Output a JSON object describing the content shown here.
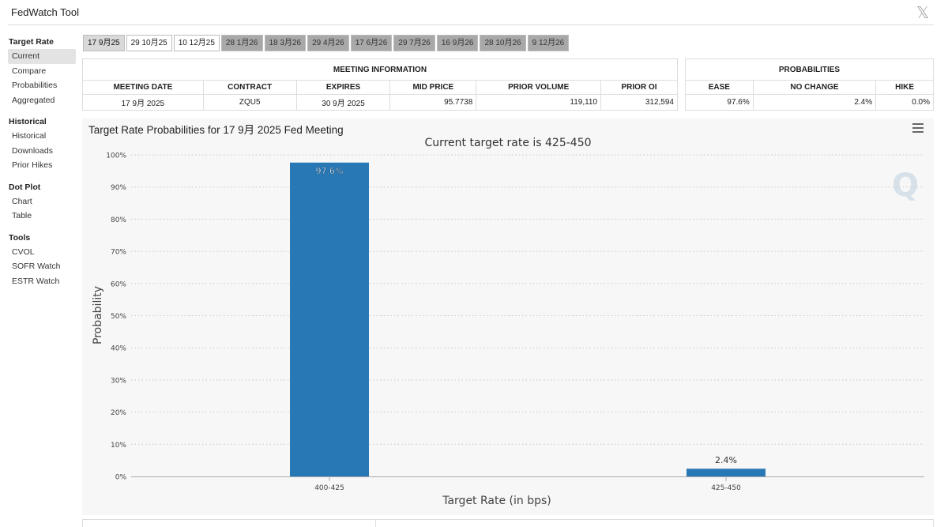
{
  "app": {
    "title": "FedWatch Tool",
    "close_icon": "x-logo-icon"
  },
  "sidebar": {
    "groups": [
      {
        "title": "Target Rate",
        "items": [
          "Current",
          "Compare",
          "Probabilities",
          "Aggregated"
        ]
      },
      {
        "title": "Historical",
        "items": [
          "Historical",
          "Downloads",
          "Prior Hikes"
        ]
      },
      {
        "title": "Dot Plot",
        "items": [
          "Chart",
          "Table"
        ]
      },
      {
        "title": "Tools",
        "items": [
          "CVOL",
          "SOFR Watch",
          "ESTR Watch"
        ]
      }
    ],
    "active_item": "Current"
  },
  "meeting_tabs": [
    "17 9月25",
    "29 10月25",
    "10 12月25",
    "28 1月26",
    "18 3月26",
    "29 4月26",
    "17 6月26",
    "29 7月26",
    "16 9月26",
    "28 10月26",
    "9 12月26"
  ],
  "meeting_info": {
    "header": "MEETING INFORMATION",
    "columns": [
      "MEETING DATE",
      "CONTRACT",
      "EXPIRES",
      "MID PRICE",
      "PRIOR VOLUME",
      "PRIOR OI"
    ],
    "row": [
      "17 9月 2025",
      "ZQU5",
      "30 9月 2025",
      "95.7738",
      "119,110",
      "312,594"
    ]
  },
  "probabilities": {
    "header": "PROBABILITIES",
    "columns": [
      "EASE",
      "NO CHANGE",
      "HIKE"
    ],
    "row": [
      "97.6%",
      "2.4%",
      "0.0%"
    ]
  },
  "chart": {
    "title": "Target Rate Probabilities for 17 9月 2025 Fed Meeting",
    "menu_icon": "hamburger-menu-icon",
    "watermark": "Q"
  },
  "chart_data": {
    "type": "bar",
    "title": "Current target rate is 425-450",
    "categories": [
      "400-425",
      "425-450"
    ],
    "values": [
      97.6,
      2.4
    ],
    "data_labels": [
      "97.6%",
      "2.4%"
    ],
    "xlabel": "Target Rate (in bps)",
    "ylabel": "Probability",
    "ylim": [
      0,
      100
    ],
    "yticks": [
      "0%",
      "10%",
      "20%",
      "30%",
      "40%",
      "50%",
      "60%",
      "70%",
      "80%",
      "90%",
      "100%"
    ],
    "bar_color": "#2878b5",
    "grid": true
  }
}
